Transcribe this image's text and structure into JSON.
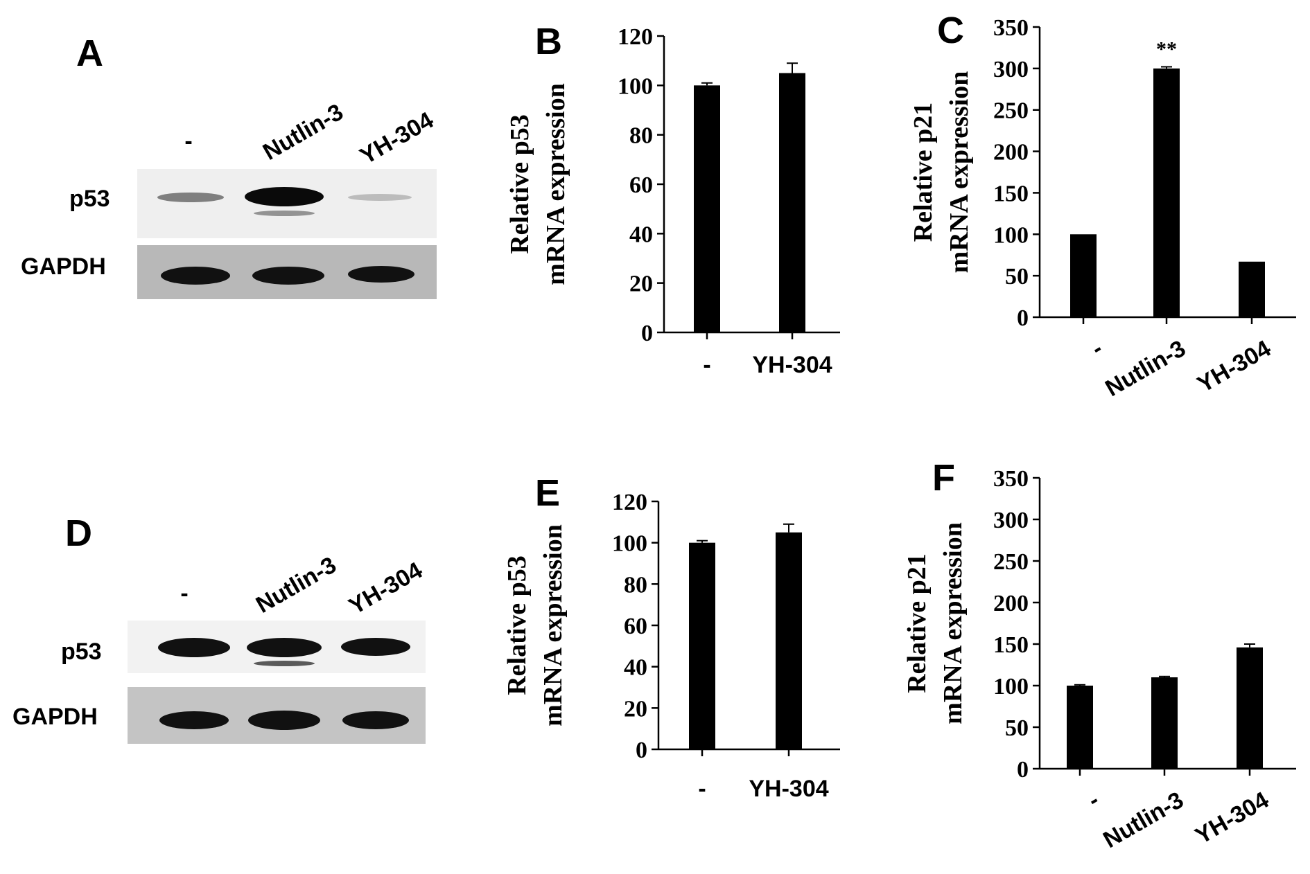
{
  "panels": {
    "A": {
      "letter": "A",
      "lanes": [
        "-",
        "Nutlin-3",
        "YH-304"
      ],
      "bands": [
        "p53",
        "GAPDH"
      ],
      "p53_intensity": [
        0.55,
        1.0,
        0.2
      ]
    },
    "D": {
      "letter": "D",
      "lanes": [
        "-",
        "Nutlin-3",
        "YH-304"
      ],
      "bands": [
        "p53",
        "GAPDH"
      ],
      "p53_intensity": [
        0.95,
        0.95,
        0.92
      ]
    }
  },
  "chart_data": [
    {
      "panel": "B",
      "type": "bar",
      "ylabel": [
        "Relative p53",
        "mRNA expression"
      ],
      "categories": [
        "-",
        "YH-304"
      ],
      "values": [
        100,
        105
      ],
      "errors": [
        1,
        4
      ],
      "annotations": [
        "",
        ""
      ],
      "ylim": [
        0,
        120
      ],
      "yticks": [
        0,
        20,
        40,
        60,
        80,
        100,
        120
      ]
    },
    {
      "panel": "C",
      "type": "bar",
      "ylabel": [
        "Relative p21",
        "mRNA expression"
      ],
      "categories": [
        "-",
        "Nutlin-3",
        "YH-304"
      ],
      "values": [
        100,
        300,
        67
      ],
      "errors": [
        0,
        2,
        0
      ],
      "annotations": [
        "",
        "**",
        ""
      ],
      "ylim": [
        0,
        350
      ],
      "yticks": [
        0,
        50,
        100,
        150,
        200,
        250,
        300,
        350
      ]
    },
    {
      "panel": "E",
      "type": "bar",
      "ylabel": [
        "Relative p53",
        "mRNA expression"
      ],
      "categories": [
        "-",
        "YH-304"
      ],
      "values": [
        100,
        105
      ],
      "errors": [
        1,
        4
      ],
      "annotations": [
        "",
        ""
      ],
      "ylim": [
        0,
        120
      ],
      "yticks": [
        0,
        20,
        40,
        60,
        80,
        100,
        120
      ]
    },
    {
      "panel": "F",
      "type": "bar",
      "ylabel": [
        "Relative p21",
        "mRNA expression"
      ],
      "categories": [
        "-",
        "Nutlin-3",
        "YH-304"
      ],
      "values": [
        100,
        110,
        146
      ],
      "errors": [
        1,
        1,
        4
      ],
      "annotations": [
        "",
        "",
        ""
      ],
      "ylim": [
        0,
        350
      ],
      "yticks": [
        0,
        50,
        100,
        150,
        200,
        250,
        300,
        350
      ]
    }
  ]
}
